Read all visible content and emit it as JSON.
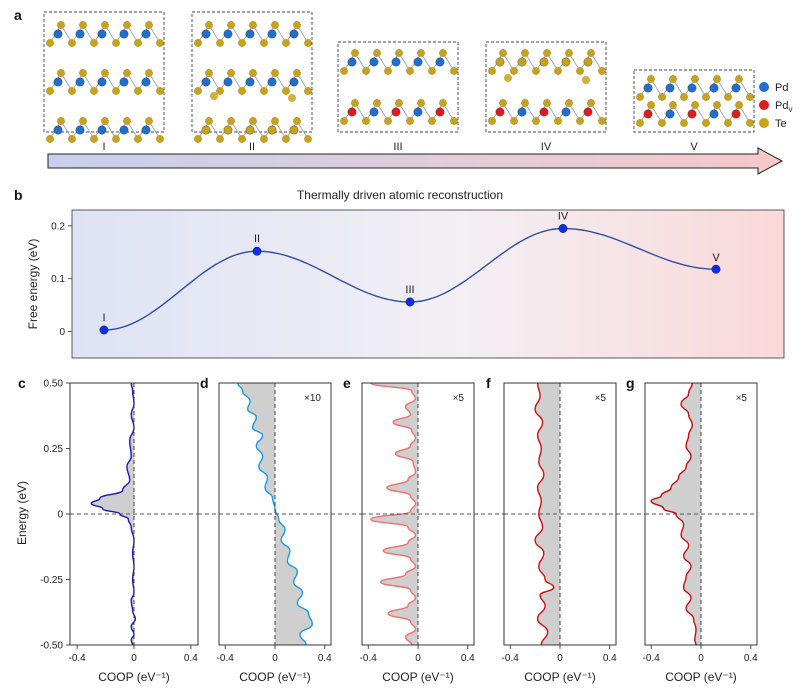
{
  "panel_labels": [
    "a",
    "b",
    "c",
    "d",
    "e",
    "f",
    "g"
  ],
  "colors": {
    "pd": "#1f6fd1",
    "pd_v": "#e01b1b",
    "te": "#c9a21b",
    "curve": "#2d4fa0",
    "dot": "#1030e0"
  },
  "panel_a": {
    "stages": [
      "I",
      "II",
      "III",
      "IV",
      "V"
    ],
    "legend": [
      {
        "label": "Pd",
        "sub": "",
        "color": "#1f6fd1"
      },
      {
        "label": "Pd",
        "sub": "v",
        "color": "#e01b1b"
      },
      {
        "label": "Te",
        "sub": "",
        "color": "#c9a21b"
      }
    ]
  },
  "chart_data": [
    {
      "id": "b",
      "type": "line",
      "title": "Thermally driven atomic reconstruction",
      "xlabel": "",
      "ylabel": "Free energy (eV)",
      "ylim": [
        -0.05,
        0.23
      ],
      "yticks": [
        "0",
        "0.1",
        "0.2"
      ],
      "points": [
        {
          "label": "I",
          "x": 0,
          "y": 0.003
        },
        {
          "label": "II",
          "x": 1,
          "y": 0.152
        },
        {
          "label": "III",
          "x": 2,
          "y": 0.056
        },
        {
          "label": "IV",
          "x": 3,
          "y": 0.195
        },
        {
          "label": "V",
          "x": 4,
          "y": 0.118
        }
      ]
    },
    {
      "id": "c",
      "type": "area",
      "scale": "",
      "color": "#1a1ab8",
      "fill": "#cfcfcf",
      "xlabel": "COOP (eV⁻¹)",
      "ylabel": "Energy (eV)",
      "xlim": [
        -0.45,
        0.45
      ],
      "ylim": [
        -0.5,
        0.5
      ],
      "xticks": [
        "-0.4",
        "0",
        "0.4"
      ],
      "yticks": [
        "0.50",
        "0.25",
        "0",
        "-0.25",
        "-0.50"
      ],
      "series": [
        {
          "e": 0.5,
          "c": -0.02
        },
        {
          "e": 0.47,
          "c": -0.01
        },
        {
          "e": 0.42,
          "c": 0.0
        },
        {
          "e": 0.38,
          "c": -0.02
        },
        {
          "e": 0.33,
          "c": 0.0
        },
        {
          "e": 0.28,
          "c": -0.03
        },
        {
          "e": 0.22,
          "c": -0.02
        },
        {
          "e": 0.18,
          "c": -0.05
        },
        {
          "e": 0.13,
          "c": -0.03
        },
        {
          "e": 0.09,
          "c": -0.08
        },
        {
          "e": 0.06,
          "c": -0.24
        },
        {
          "e": 0.04,
          "c": -0.3
        },
        {
          "e": 0.02,
          "c": -0.22
        },
        {
          "e": 0.0,
          "c": -0.1
        },
        {
          "e": -0.02,
          "c": -0.04
        },
        {
          "e": -0.05,
          "c": -0.02
        },
        {
          "e": -0.1,
          "c": 0.0
        },
        {
          "e": -0.15,
          "c": -0.01
        },
        {
          "e": -0.2,
          "c": 0.0
        },
        {
          "e": -0.25,
          "c": -0.01
        },
        {
          "e": -0.3,
          "c": 0.0
        },
        {
          "e": -0.33,
          "c": -0.02
        },
        {
          "e": -0.37,
          "c": -0.01
        },
        {
          "e": -0.4,
          "c": 0.01
        },
        {
          "e": -0.43,
          "c": -0.02
        },
        {
          "e": -0.46,
          "c": 0.0
        },
        {
          "e": -0.48,
          "c": -0.02
        },
        {
          "e": -0.5,
          "c": -0.01
        }
      ]
    },
    {
      "id": "d",
      "type": "area",
      "scale": "×10",
      "color": "#1e9be0",
      "fill": "#cfcfcf",
      "xlabel": "COOP (eV⁻¹)",
      "ylabel": "",
      "xlim": [
        -0.45,
        0.45
      ],
      "ylim": [
        -0.5,
        0.5
      ],
      "xticks": [
        "-0.4",
        "0",
        "0.4"
      ],
      "yticks": [],
      "series": [
        {
          "e": 0.5,
          "c": -0.3
        },
        {
          "e": 0.47,
          "c": -0.26
        },
        {
          "e": 0.43,
          "c": -0.2
        },
        {
          "e": 0.4,
          "c": -0.22
        },
        {
          "e": 0.37,
          "c": -0.15
        },
        {
          "e": 0.33,
          "c": -0.18
        },
        {
          "e": 0.3,
          "c": -0.1
        },
        {
          "e": 0.26,
          "c": -0.15
        },
        {
          "e": 0.22,
          "c": -0.1
        },
        {
          "e": 0.18,
          "c": -0.13
        },
        {
          "e": 0.14,
          "c": -0.06
        },
        {
          "e": 0.1,
          "c": -0.08
        },
        {
          "e": 0.06,
          "c": -0.02
        },
        {
          "e": 0.02,
          "c": 0.0
        },
        {
          "e": -0.02,
          "c": 0.03
        },
        {
          "e": -0.06,
          "c": 0.08
        },
        {
          "e": -0.1,
          "c": 0.05
        },
        {
          "e": -0.14,
          "c": 0.12
        },
        {
          "e": -0.18,
          "c": 0.1
        },
        {
          "e": -0.22,
          "c": 0.18
        },
        {
          "e": -0.26,
          "c": 0.15
        },
        {
          "e": -0.3,
          "c": 0.22
        },
        {
          "e": -0.34,
          "c": 0.18
        },
        {
          "e": -0.38,
          "c": 0.27
        },
        {
          "e": -0.42,
          "c": 0.3
        },
        {
          "e": -0.46,
          "c": 0.2
        },
        {
          "e": -0.5,
          "c": 0.25
        }
      ]
    },
    {
      "id": "e",
      "type": "area",
      "scale": "×5",
      "color": "#f07070",
      "fill": "#cfcfcf",
      "xlabel": "COOP (eV⁻¹)",
      "ylabel": "",
      "xlim": [
        -0.45,
        0.45
      ],
      "ylim": [
        -0.5,
        0.5
      ],
      "xticks": [
        "-0.4",
        "0",
        "0.4"
      ],
      "yticks": [],
      "series": [
        {
          "e": 0.5,
          "c": -0.38
        },
        {
          "e": 0.47,
          "c": -0.05
        },
        {
          "e": 0.44,
          "c": -0.02
        },
        {
          "e": 0.41,
          "c": -0.1
        },
        {
          "e": 0.38,
          "c": -0.06
        },
        {
          "e": 0.35,
          "c": -0.2
        },
        {
          "e": 0.32,
          "c": -0.05
        },
        {
          "e": 0.29,
          "c": -0.02
        },
        {
          "e": 0.26,
          "c": -0.06
        },
        {
          "e": 0.23,
          "c": -0.18
        },
        {
          "e": 0.2,
          "c": -0.04
        },
        {
          "e": 0.16,
          "c": -0.02
        },
        {
          "e": 0.13,
          "c": -0.08
        },
        {
          "e": 0.1,
          "c": -0.25
        },
        {
          "e": 0.07,
          "c": -0.06
        },
        {
          "e": 0.04,
          "c": -0.02
        },
        {
          "e": 0.01,
          "c": -0.06
        },
        {
          "e": -0.02,
          "c": -0.38
        },
        {
          "e": -0.05,
          "c": -0.08
        },
        {
          "e": -0.08,
          "c": -0.02
        },
        {
          "e": -0.11,
          "c": -0.08
        },
        {
          "e": -0.14,
          "c": -0.28
        },
        {
          "e": -0.17,
          "c": -0.06
        },
        {
          "e": -0.2,
          "c": -0.02
        },
        {
          "e": -0.23,
          "c": -0.1
        },
        {
          "e": -0.26,
          "c": -0.3
        },
        {
          "e": -0.29,
          "c": -0.06
        },
        {
          "e": -0.32,
          "c": -0.02
        },
        {
          "e": -0.35,
          "c": -0.08
        },
        {
          "e": -0.38,
          "c": -0.24
        },
        {
          "e": -0.41,
          "c": -0.06
        },
        {
          "e": -0.44,
          "c": -0.02
        },
        {
          "e": -0.47,
          "c": -0.1
        },
        {
          "e": -0.5,
          "c": -0.05
        }
      ]
    },
    {
      "id": "f",
      "type": "area",
      "scale": "×5",
      "color": "#d01010",
      "fill": "#cfcfcf",
      "xlabel": "COOP (eV⁻¹)",
      "ylabel": "",
      "xlim": [
        -0.45,
        0.45
      ],
      "ylim": [
        -0.5,
        0.5
      ],
      "xticks": [
        "-0.4",
        "0",
        "0.4"
      ],
      "yticks": [],
      "series": [
        {
          "e": 0.5,
          "c": -0.18
        },
        {
          "e": 0.45,
          "c": -0.16
        },
        {
          "e": 0.4,
          "c": -0.2
        },
        {
          "e": 0.35,
          "c": -0.14
        },
        {
          "e": 0.3,
          "c": -0.18
        },
        {
          "e": 0.25,
          "c": -0.15
        },
        {
          "e": 0.2,
          "c": -0.17
        },
        {
          "e": 0.15,
          "c": -0.13
        },
        {
          "e": 0.1,
          "c": -0.18
        },
        {
          "e": 0.05,
          "c": -0.15
        },
        {
          "e": 0.0,
          "c": -0.17
        },
        {
          "e": -0.05,
          "c": -0.14
        },
        {
          "e": -0.1,
          "c": -0.2
        },
        {
          "e": -0.15,
          "c": -0.13
        },
        {
          "e": -0.2,
          "c": -0.17
        },
        {
          "e": -0.25,
          "c": -0.12
        },
        {
          "e": -0.28,
          "c": -0.05
        },
        {
          "e": -0.31,
          "c": -0.16
        },
        {
          "e": -0.35,
          "c": -0.12
        },
        {
          "e": -0.4,
          "c": -0.18
        },
        {
          "e": -0.45,
          "c": -0.1
        },
        {
          "e": -0.5,
          "c": -0.15
        }
      ]
    },
    {
      "id": "g",
      "type": "area",
      "scale": "×5",
      "color": "#c40f0f",
      "fill": "#cfcfcf",
      "xlabel": "COOP (eV⁻¹)",
      "ylabel": "",
      "xlim": [
        -0.45,
        0.45
      ],
      "ylim": [
        -0.5,
        0.5
      ],
      "xticks": [
        "-0.4",
        "0",
        "0.4"
      ],
      "yticks": [],
      "series": [
        {
          "e": 0.5,
          "c": -0.07
        },
        {
          "e": 0.46,
          "c": -0.1
        },
        {
          "e": 0.42,
          "c": -0.16
        },
        {
          "e": 0.38,
          "c": -0.1
        },
        {
          "e": 0.34,
          "c": -0.07
        },
        {
          "e": 0.3,
          "c": -0.1
        },
        {
          "e": 0.26,
          "c": -0.12
        },
        {
          "e": 0.22,
          "c": -0.08
        },
        {
          "e": 0.18,
          "c": -0.12
        },
        {
          "e": 0.14,
          "c": -0.18
        },
        {
          "e": 0.1,
          "c": -0.24
        },
        {
          "e": 0.07,
          "c": -0.32
        },
        {
          "e": 0.05,
          "c": -0.4
        },
        {
          "e": 0.02,
          "c": -0.3
        },
        {
          "e": 0.0,
          "c": -0.2
        },
        {
          "e": -0.04,
          "c": -0.14
        },
        {
          "e": -0.08,
          "c": -0.16
        },
        {
          "e": -0.12,
          "c": -0.1
        },
        {
          "e": -0.16,
          "c": -0.14
        },
        {
          "e": -0.2,
          "c": -0.08
        },
        {
          "e": -0.24,
          "c": -0.12
        },
        {
          "e": -0.28,
          "c": -0.14
        },
        {
          "e": -0.32,
          "c": -0.08
        },
        {
          "e": -0.36,
          "c": -0.12
        },
        {
          "e": -0.4,
          "c": -0.06
        },
        {
          "e": -0.44,
          "c": -0.04
        },
        {
          "e": -0.48,
          "c": -0.05
        },
        {
          "e": -0.5,
          "c": -0.04
        }
      ]
    }
  ]
}
